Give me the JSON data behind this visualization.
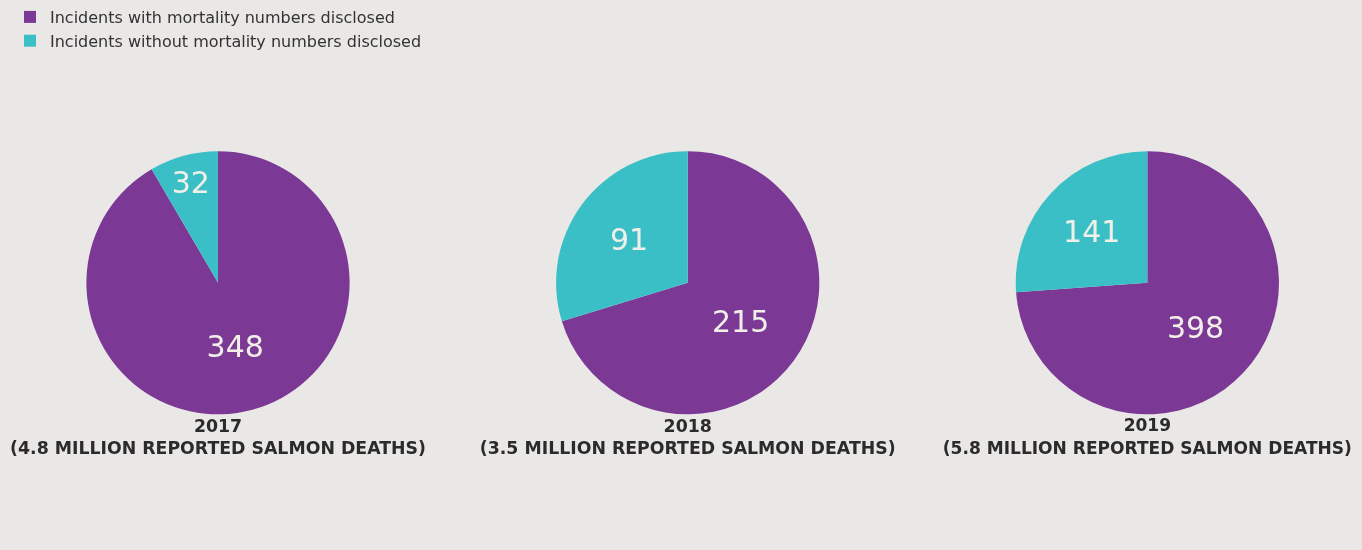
{
  "chart_data": [
    {
      "type": "pie",
      "title": "2017",
      "subtitle": "(4.8 MILLION REPORTED SALMON DEATHS)",
      "categories": [
        "Incidents with mortality numbers disclosed",
        "Incidents without mortality numbers disclosed"
      ],
      "values": [
        348,
        32
      ],
      "colors": [
        "#7b3894",
        "#3bbfc6"
      ],
      "data_labels": true,
      "legend": "top left"
    },
    {
      "type": "pie",
      "title": "2018",
      "subtitle": "(3.5 MILLION REPORTED SALMON DEATHS)",
      "categories": [
        null,
        null
      ],
      "values": [
        215,
        91
      ],
      "colors": [
        "#7b3894",
        "#3bbfc6"
      ],
      "data_labels": true
    },
    {
      "type": "pie",
      "title": "2019",
      "subtitle": "(5.8 MILLION REPORTED SALMON DEATHS)",
      "categories": [
        null,
        null
      ],
      "values": [
        398,
        141
      ],
      "colors": [
        "#7b3894",
        "#3bbfc6"
      ],
      "data_labels": true
    }
  ]
}
